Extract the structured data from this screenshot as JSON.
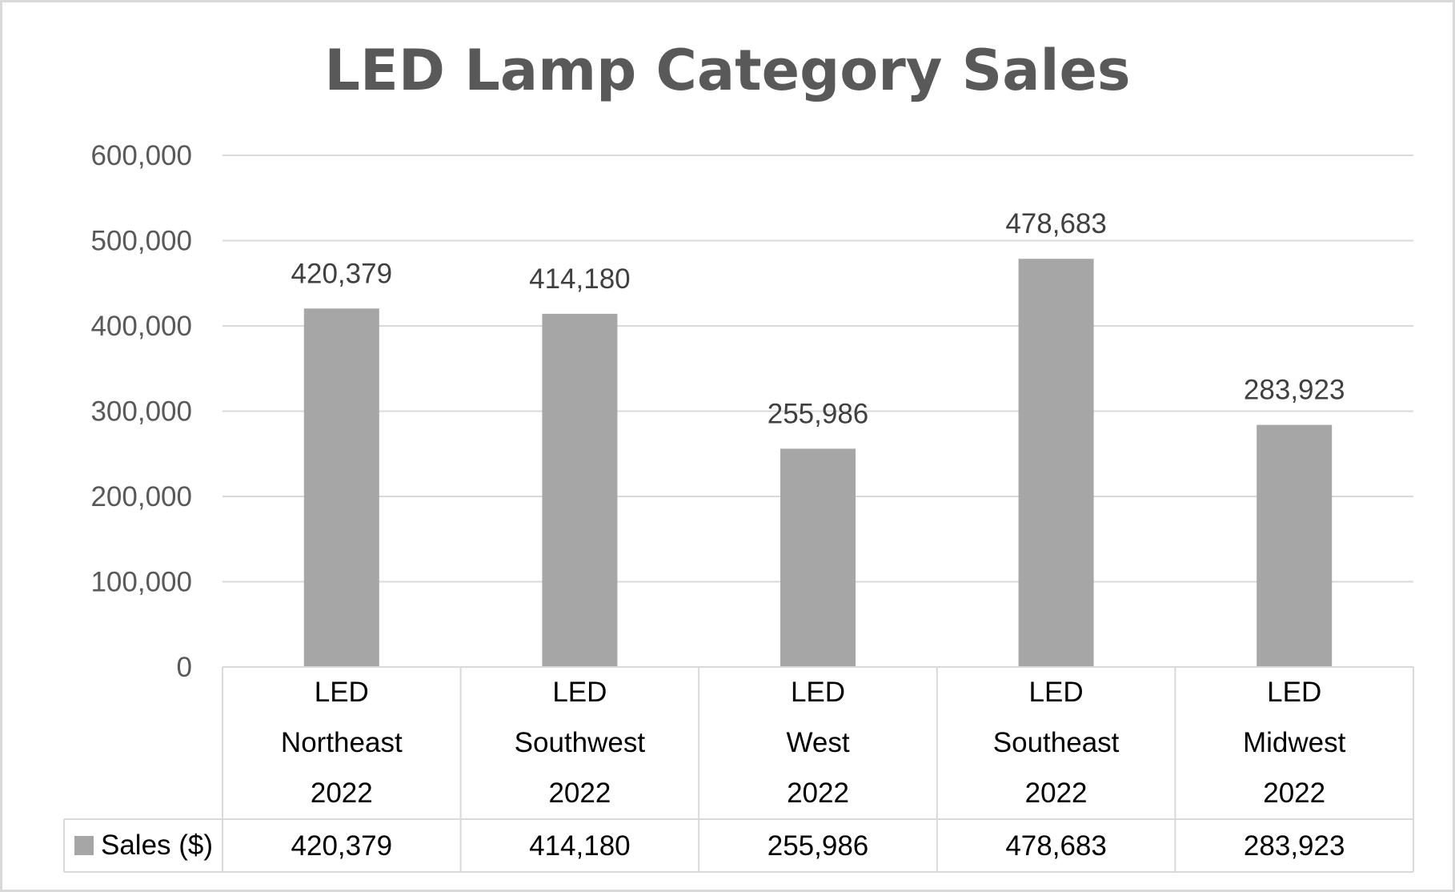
{
  "chart_data": {
    "type": "bar",
    "title": "LED Lamp Category Sales",
    "xlabel": "",
    "ylabel": "",
    "ylim": [
      0,
      600000
    ],
    "yticks": [
      0,
      100000,
      200000,
      300000,
      400000,
      500000,
      600000
    ],
    "ytick_labels": [
      "0",
      "100,000",
      "200,000",
      "300,000",
      "400,000",
      "500,000",
      "600,000"
    ],
    "grid": true,
    "categories": [
      [
        "LED",
        "Northeast",
        "2022"
      ],
      [
        "LED",
        "Southwest",
        "2022"
      ],
      [
        "LED",
        "West",
        "2022"
      ],
      [
        "LED",
        "Southeast",
        "2022"
      ],
      [
        "LED",
        "Midwest",
        "2022"
      ]
    ],
    "series": [
      {
        "name": "Sales ($)",
        "values": [
          420379,
          414180,
          255986,
          478683,
          283923
        ],
        "labels": [
          "420,379",
          "414,180",
          "255,986",
          "478,683",
          "283,923"
        ]
      }
    ],
    "legend": "bottom-table",
    "colors": {
      "bar": "#a6a6a6",
      "grid": "#d9d9d9",
      "title": "#595959",
      "border": "#d9d9d9"
    }
  }
}
